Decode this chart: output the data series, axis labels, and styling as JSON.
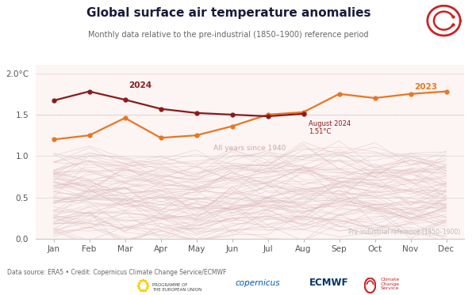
{
  "title": "Global surface air temperature anomalies",
  "subtitle": "Monthly data relative to the pre-industrial (1850–1900) reference period",
  "data_source": "Data source: ERA5 • Credit: Copernicus Climate Change Service/ECMWF",
  "preindustrial_label": "Pre-industrial reference (1850–1900)",
  "all_years_label": "All years since 1940",
  "months": [
    "Jan",
    "Feb",
    "Mar",
    "Apr",
    "May",
    "Jun",
    "Jul",
    "Aug",
    "Sep",
    "Oct",
    "Nov",
    "Dec"
  ],
  "year2024": [
    1.67,
    1.78,
    1.68,
    1.57,
    1.52,
    1.5,
    1.48,
    1.51,
    null,
    null,
    null,
    null
  ],
  "year2023": [
    1.2,
    1.25,
    1.46,
    1.22,
    1.25,
    1.36,
    1.5,
    1.53,
    1.75,
    1.7,
    1.75,
    1.78
  ],
  "color_2024": "#8B1A1A",
  "color_2023": "#E87722",
  "color_background_pink": "#FDF4F4",
  "color_grid": "#DDDDDD",
  "ylim": [
    0.0,
    2.1
  ],
  "yticks": [
    0.0,
    0.5,
    1.0,
    1.5,
    2.0
  ],
  "ytick_labels": [
    "0.0",
    "0.5",
    "1.0",
    "1.5",
    "2.0°C"
  ],
  "bg_color": "#FFFFFF",
  "historical_years_color": "#DDBCBC",
  "historical_years_alpha": 0.55,
  "marker_size": 3.5,
  "linewidth_main": 1.6,
  "linewidth_hist": 0.5
}
